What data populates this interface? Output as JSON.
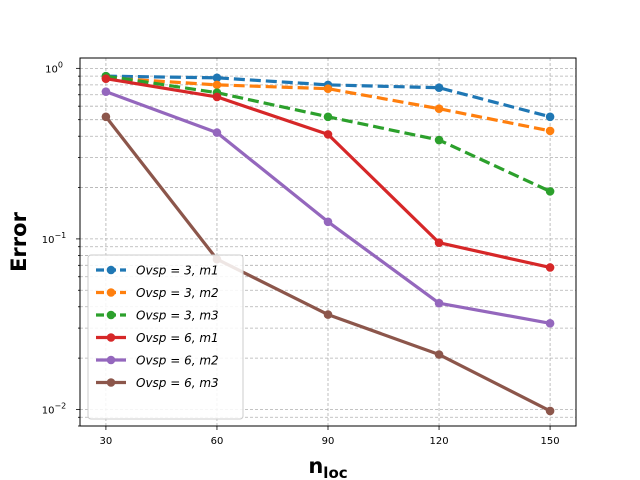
{
  "chart_data": {
    "type": "line",
    "xlabel": "n",
    "xlabel_sub": "loc",
    "ylabel": "Error",
    "yscale": "log",
    "ylim": [
      0.008,
      1.15
    ],
    "xlim": [
      23,
      157
    ],
    "grid": true,
    "legend_position": "lower-left",
    "x": [
      30,
      60,
      90,
      120,
      150
    ],
    "xtick_labels": [
      "30",
      "60",
      "90",
      "120",
      "150"
    ],
    "ytick_labels": [
      {
        "value": 0.01,
        "base": "10",
        "exp": "−2"
      },
      {
        "value": 0.1,
        "base": "10",
        "exp": "−1"
      },
      {
        "value": 1,
        "base": "10",
        "exp": "0"
      }
    ],
    "series": [
      {
        "name": "Ovsp = 3, m1",
        "color": "#1f77b4",
        "dashed": true,
        "values": [
          0.9,
          0.88,
          0.8,
          0.77,
          0.52
        ]
      },
      {
        "name": "Ovsp = 3, m2",
        "color": "#ff7f0e",
        "dashed": true,
        "values": [
          0.88,
          0.8,
          0.76,
          0.58,
          0.43
        ]
      },
      {
        "name": "Ovsp = 3, m3",
        "color": "#2ca02c",
        "dashed": true,
        "values": [
          0.9,
          0.72,
          0.52,
          0.38,
          0.19
        ]
      },
      {
        "name": "Ovsp = 6, m1",
        "color": "#d62728",
        "dashed": false,
        "values": [
          0.87,
          0.68,
          0.41,
          0.095,
          0.068
        ]
      },
      {
        "name": "Ovsp = 6, m2",
        "color": "#9467bd",
        "dashed": false,
        "values": [
          0.73,
          0.42,
          0.126,
          0.042,
          0.032
        ]
      },
      {
        "name": "Ovsp = 6, m3",
        "color": "#8c564b",
        "dashed": false,
        "values": [
          0.52,
          0.076,
          0.036,
          0.021,
          0.0098
        ]
      }
    ]
  }
}
